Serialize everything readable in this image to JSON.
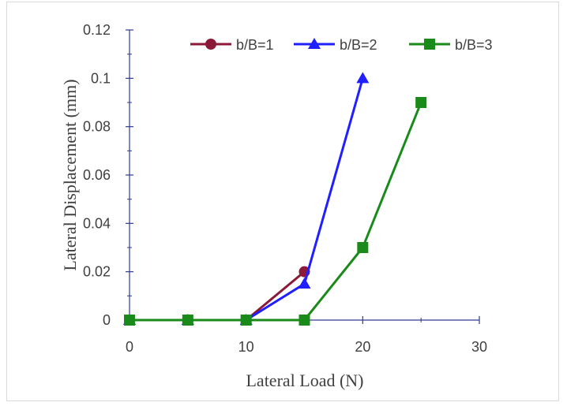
{
  "chart_data": {
    "type": "line",
    "xlabel": "Lateral Load (N)",
    "ylabel": "Lateral Displacement (mm)",
    "xlim": [
      0,
      30
    ],
    "ylim": [
      0,
      0.12
    ],
    "x_ticks": [
      "0",
      "10",
      "20",
      "30"
    ],
    "x_tick_values": [
      0,
      10,
      20,
      30
    ],
    "y_ticks": [
      "0",
      "0.02",
      "0.04",
      "0.06",
      "0.08",
      "0.1",
      "0.12"
    ],
    "y_tick_values": [
      0,
      0.02,
      0.04,
      0.06,
      0.08,
      0.1,
      0.12
    ],
    "grid": false,
    "legend_position": "top",
    "series": [
      {
        "name": "b/B=1",
        "color": "#8b1a3a",
        "marker": "circle",
        "x": [
          0,
          5,
          10,
          15
        ],
        "y": [
          0,
          0,
          0,
          0.02
        ]
      },
      {
        "name": "b/B=2",
        "color": "#1f1fff",
        "marker": "triangle",
        "x": [
          0,
          5,
          10,
          15,
          20
        ],
        "y": [
          0,
          0,
          0,
          0.015,
          0.1
        ]
      },
      {
        "name": "b/B=3",
        "color": "#1a8a1a",
        "marker": "square",
        "x": [
          0,
          5,
          10,
          15,
          20,
          25
        ],
        "y": [
          0,
          0,
          0,
          0,
          0.03,
          0.09
        ]
      }
    ]
  }
}
